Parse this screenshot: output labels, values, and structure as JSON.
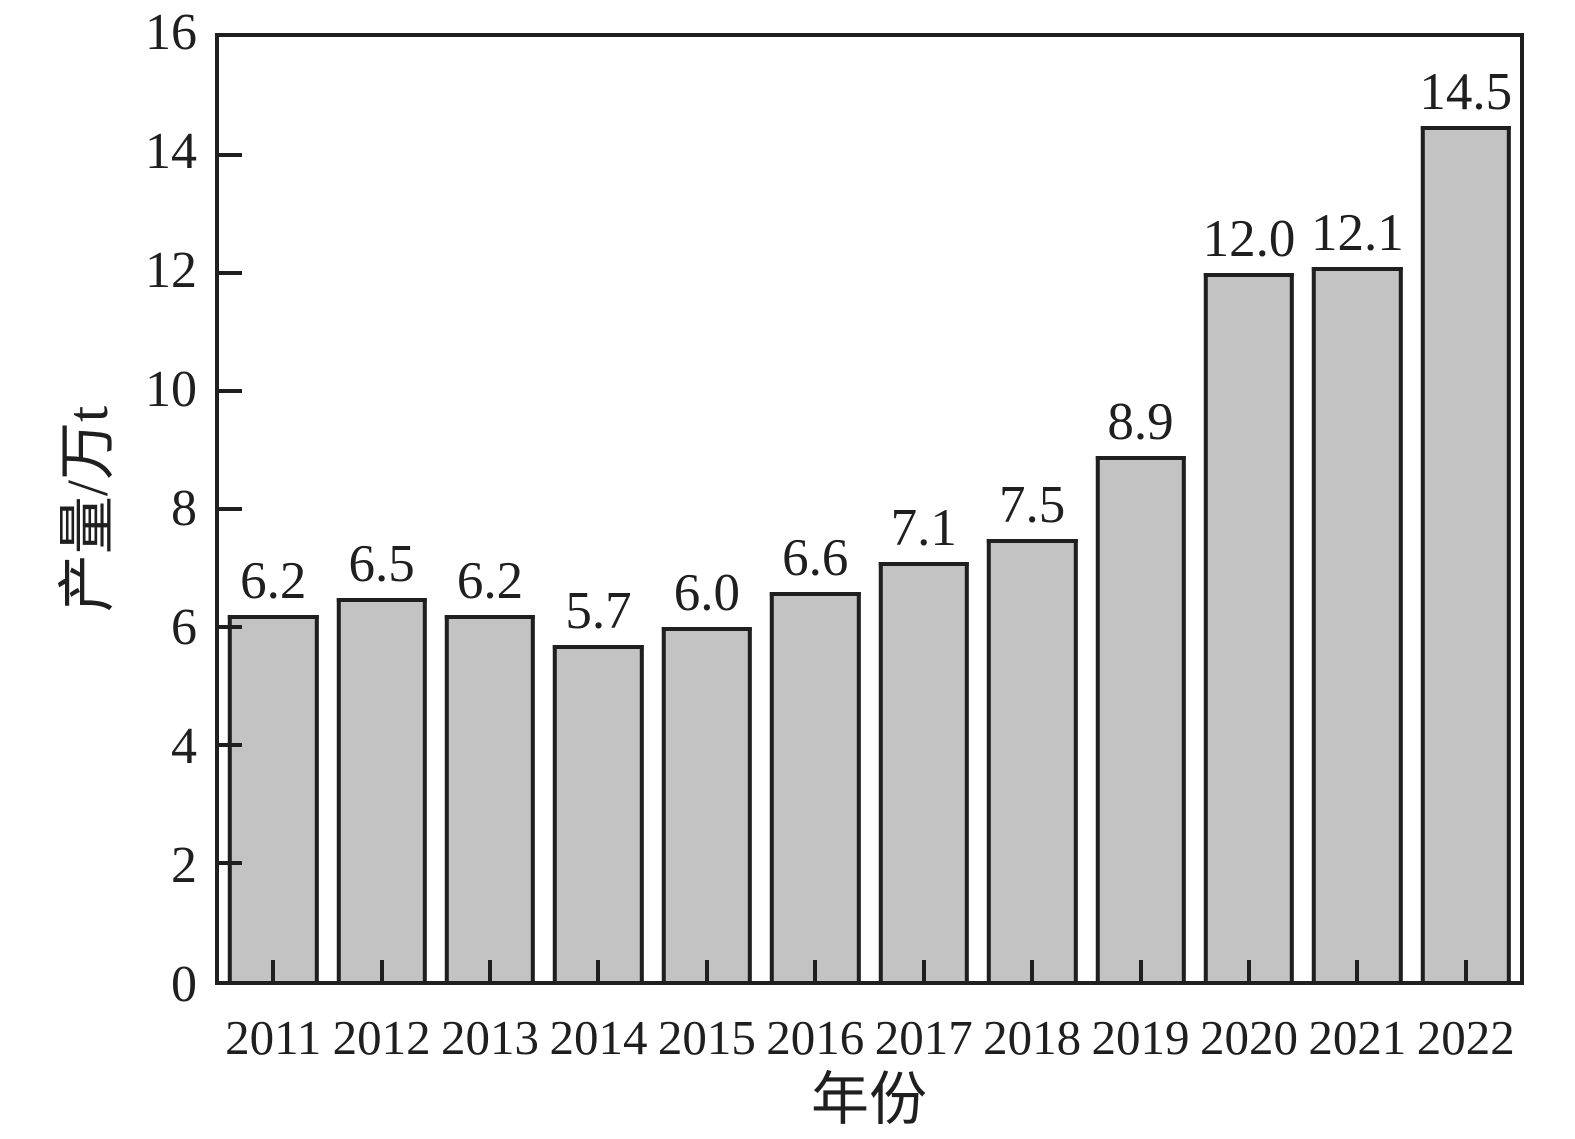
{
  "chart_data": {
    "type": "bar",
    "title": "",
    "xlabel": "年份",
    "ylabel": "产量/万t",
    "categories": [
      "2011",
      "2012",
      "2013",
      "2014",
      "2015",
      "2016",
      "2017",
      "2018",
      "2019",
      "2020",
      "2021",
      "2022"
    ],
    "values": [
      6.2,
      6.5,
      6.2,
      5.7,
      6.0,
      6.6,
      7.1,
      7.5,
      8.9,
      12.0,
      12.1,
      14.5
    ],
    "value_labels": [
      "6.2",
      "6.5",
      "6.2",
      "5.7",
      "6.0",
      "6.6",
      "7.1",
      "7.5",
      "8.9",
      "12.0",
      "12.1",
      "14.5"
    ],
    "ylim": [
      0,
      16
    ],
    "yticks": [
      0,
      2,
      4,
      6,
      8,
      10,
      12,
      14,
      16
    ],
    "ytick_labels": [
      "0",
      "2",
      "4",
      "6",
      "8",
      "10",
      "12",
      "14",
      "16"
    ],
    "grid": false,
    "legend_position": "none",
    "bar_color": "#c3c3c3",
    "edge_color": "#1f1f1f",
    "text_color": "#1f1f1f",
    "background_color": "#ffffff"
  }
}
